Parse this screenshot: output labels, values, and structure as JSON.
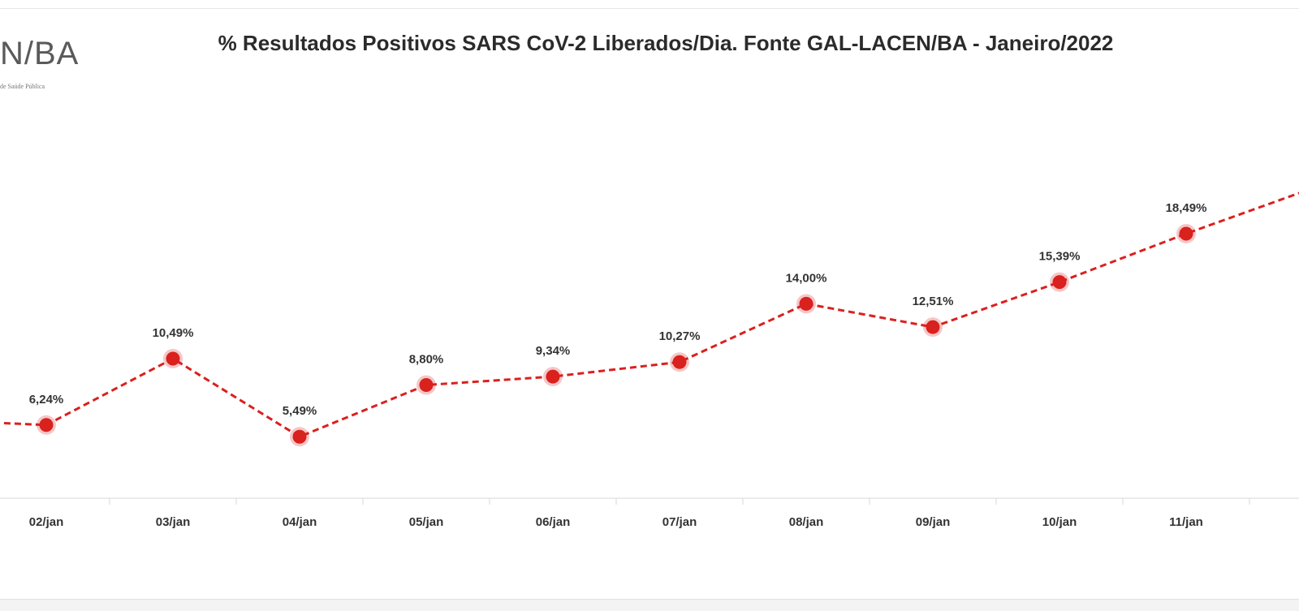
{
  "logo": {
    "mark": "N/BA",
    "subtitle": "de Saúde Pública",
    "colors": {
      "text": "#5a5a5a"
    }
  },
  "chart_data": {
    "type": "line",
    "title": "% Resultados Positivos SARS CoV-2 Liberados/Dia. Fonte GAL-LACEN/BA - Janeiro/2022",
    "xlabel": "",
    "ylabel": "",
    "categories": [
      "02/jan",
      "03/jan",
      "04/jan",
      "05/jan",
      "06/jan",
      "07/jan",
      "08/jan",
      "09/jan",
      "10/jan",
      "11/jan"
    ],
    "series": [
      {
        "values": [
          6.24,
          10.49,
          5.49,
          8.8,
          9.34,
          10.27,
          14.0,
          12.51,
          15.39,
          18.49
        ],
        "labels": [
          "6,24%",
          "10,49%",
          "5,49%",
          "8,80%",
          "9,34%",
          "10,27%",
          "14,00%",
          "12,51%",
          "15,39%",
          "18,49%"
        ],
        "color": "#d9211e",
        "line_style": "dashed"
      }
    ],
    "ylim": [
      0,
      25
    ],
    "grid": false,
    "legend": "none",
    "partial_left_value": 6.6,
    "partial_right_value": 21.4
  }
}
